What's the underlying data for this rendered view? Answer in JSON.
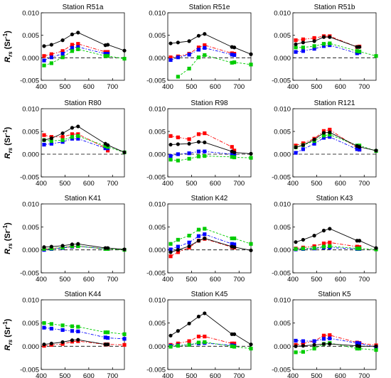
{
  "figure": {
    "ylabel_main": "R",
    "ylabel_sub": "rs",
    "ylabel_unit": " (Sr",
    "ylabel_exp": "-1",
    "ylabel_close": ")",
    "ytick_labels": [
      "-0.005",
      "0.000",
      "0.005",
      "0.010"
    ],
    "xtick_labels": [
      "400",
      "500",
      "600",
      "700"
    ]
  },
  "chart_data": [
    {
      "type": "line",
      "title": "Station R51a",
      "x": [
        412,
        443,
        490,
        530,
        555,
        670,
        680,
        750
      ],
      "xlim": [
        400,
        750
      ],
      "ylim": [
        -0.005,
        0.01
      ],
      "yticks": [
        -0.005,
        0.0,
        0.005,
        0.01
      ],
      "xticks": [
        400,
        500,
        600,
        700
      ],
      "grid": false,
      "reference_line": 0,
      "series": [
        {
          "color": "#000000",
          "marker": "circle",
          "values": [
            0.0026,
            0.0029,
            0.0039,
            0.0052,
            0.0056,
            0.0028,
            0.0029,
            0.0016
          ]
        },
        {
          "color": "#ff0000",
          "marker": "square",
          "values": [
            0.0004,
            0.0008,
            0.0015,
            0.0029,
            0.0031,
            0.0013,
            0.0013,
            null
          ]
        },
        {
          "color": "#0000ff",
          "marker": "square",
          "values": [
            -0.0006,
            0.0001,
            0.0009,
            0.0022,
            0.0024,
            0.0009,
            0.0009,
            null
          ]
        },
        {
          "color": "#00cc00",
          "marker": "square",
          "values": [
            -0.0017,
            -0.0012,
            0.0001,
            0.0015,
            0.0019,
            0.0004,
            0.0004,
            -0.0002
          ]
        }
      ]
    },
    {
      "type": "line",
      "title": "Station R51e",
      "x": [
        412,
        443,
        490,
        530,
        555,
        670,
        680,
        750
      ],
      "xlim": [
        400,
        750
      ],
      "ylim": [
        -0.005,
        0.01
      ],
      "yticks": [
        -0.005,
        0.0,
        0.005,
        0.01
      ],
      "xticks": [
        400,
        500,
        600,
        700
      ],
      "grid": false,
      "reference_line": 0,
      "series": [
        {
          "color": "#000000",
          "marker": "circle",
          "values": [
            0.0032,
            0.0034,
            0.0037,
            0.0049,
            0.0053,
            0.0024,
            0.0023,
            0.0008
          ]
        },
        {
          "color": "#ff0000",
          "marker": "square",
          "values": [
            0.0001,
            0.0003,
            0.0009,
            0.0023,
            0.0028,
            0.001,
            0.0009,
            null
          ]
        },
        {
          "color": "#0000ff",
          "marker": "square",
          "values": [
            -0.0005,
            0.0001,
            0.0007,
            0.0018,
            0.0022,
            0.0007,
            0.0006,
            null
          ]
        },
        {
          "color": "#00cc00",
          "marker": "square",
          "values": [
            null,
            -0.0042,
            -0.0024,
            0.0001,
            0.0006,
            -0.0011,
            -0.001,
            -0.0015
          ]
        }
      ]
    },
    {
      "type": "line",
      "title": "Station R51b",
      "x": [
        412,
        443,
        490,
        530,
        555,
        670,
        680,
        750
      ],
      "xlim": [
        400,
        750
      ],
      "ylim": [
        -0.005,
        0.01
      ],
      "yticks": [
        -0.005,
        0.0,
        0.005,
        0.01
      ],
      "xticks": [
        400,
        500,
        600,
        700
      ],
      "grid": false,
      "reference_line": 0,
      "series": [
        {
          "color": "#000000",
          "marker": "circle",
          "values": [
            0.003,
            0.0034,
            0.0037,
            0.0046,
            0.0046,
            0.0024,
            0.0024,
            null
          ]
        },
        {
          "color": "#ff0000",
          "marker": "square",
          "values": [
            0.0039,
            0.0041,
            0.0044,
            0.0048,
            0.0048,
            0.0024,
            0.0025,
            null
          ]
        },
        {
          "color": "#0000ff",
          "marker": "square",
          "values": [
            0.0013,
            0.0015,
            0.002,
            0.0026,
            0.0028,
            0.001,
            0.0012,
            null
          ]
        },
        {
          "color": "#00cc00",
          "marker": "square",
          "values": [
            0.0023,
            0.0023,
            0.0026,
            0.0031,
            0.0032,
            0.0015,
            0.0014,
            0.0004
          ]
        }
      ]
    },
    {
      "type": "line",
      "title": "Station R80",
      "x": [
        412,
        443,
        490,
        530,
        555,
        670,
        680,
        750
      ],
      "xlim": [
        400,
        750
      ],
      "ylim": [
        -0.005,
        0.01
      ],
      "yticks": [
        -0.005,
        0.0,
        0.005,
        0.01
      ],
      "xticks": [
        400,
        500,
        600,
        700
      ],
      "grid": false,
      "reference_line": 0,
      "series": [
        {
          "color": "#000000",
          "marker": "circle",
          "values": [
            0.0031,
            0.0035,
            0.0046,
            0.0058,
            0.0061,
            0.0023,
            0.002,
            0.0004
          ]
        },
        {
          "color": "#ff0000",
          "marker": "square",
          "values": [
            0.0042,
            0.0038,
            0.0038,
            0.0044,
            0.0044,
            0.0014,
            0.0008,
            null
          ]
        },
        {
          "color": "#0000ff",
          "marker": "square",
          "values": [
            0.0021,
            0.0023,
            0.0027,
            0.0034,
            0.0034,
            0.0013,
            0.0013,
            null
          ]
        },
        {
          "color": "#00cc00",
          "marker": "square",
          "values": [
            0.0031,
            0.0029,
            0.0031,
            0.0038,
            0.004,
            0.0018,
            0.0016,
            0.0004
          ]
        }
      ]
    },
    {
      "type": "line",
      "title": "Station R98",
      "x": [
        412,
        443,
        490,
        530,
        555,
        670,
        680,
        750
      ],
      "xlim": [
        400,
        750
      ],
      "ylim": [
        -0.005,
        0.01
      ],
      "yticks": [
        -0.005,
        0.0,
        0.005,
        0.01
      ],
      "xticks": [
        400,
        500,
        600,
        700
      ],
      "grid": false,
      "reference_line": 0,
      "series": [
        {
          "color": "#000000",
          "marker": "circle",
          "values": [
            0.0021,
            0.0022,
            0.0023,
            0.0027,
            0.0026,
            0.0006,
            0.0004,
            0.0001
          ]
        },
        {
          "color": "#ff0000",
          "marker": "square",
          "values": [
            0.004,
            0.0037,
            0.0033,
            0.0044,
            0.0046,
            0.0016,
            0.0008,
            null
          ]
        },
        {
          "color": "#0000ff",
          "marker": "square",
          "values": [
            -0.0004,
            0.0,
            0.0002,
            0.0006,
            0.0006,
            0.0,
            -0.0001,
            null
          ]
        },
        {
          "color": "#00cc00",
          "marker": "square",
          "values": [
            -0.0012,
            -0.0014,
            -0.001,
            -0.0005,
            -0.0004,
            -0.0006,
            -0.0007,
            -0.0008
          ]
        }
      ]
    },
    {
      "type": "line",
      "title": "Station R121",
      "x": [
        412,
        443,
        490,
        530,
        555,
        670,
        680,
        750
      ],
      "xlim": [
        400,
        750
      ],
      "ylim": [
        -0.005,
        0.01
      ],
      "yticks": [
        -0.005,
        0.0,
        0.005,
        0.01
      ],
      "xticks": [
        400,
        500,
        600,
        700
      ],
      "grid": false,
      "reference_line": 0,
      "series": [
        {
          "color": "#000000",
          "marker": "circle",
          "values": [
            0.0015,
            0.002,
            0.0032,
            0.0047,
            0.0048,
            0.0018,
            0.0016,
            0.0008
          ]
        },
        {
          "color": "#ff0000",
          "marker": "square",
          "values": [
            0.0019,
            0.0024,
            0.0034,
            0.0051,
            0.0054,
            0.0014,
            0.001,
            null
          ]
        },
        {
          "color": "#0000ff",
          "marker": "square",
          "values": [
            0.0003,
            0.0011,
            0.0023,
            0.0036,
            0.0038,
            0.0011,
            0.001,
            null
          ]
        },
        {
          "color": "#00cc00",
          "marker": "square",
          "values": [
            0.0015,
            0.002,
            0.0029,
            0.0041,
            0.0043,
            0.0019,
            0.0019,
            0.0007
          ]
        }
      ]
    },
    {
      "type": "line",
      "title": "Station K41",
      "x": [
        412,
        443,
        490,
        530,
        555,
        670,
        680,
        750
      ],
      "xlim": [
        400,
        750
      ],
      "ylim": [
        -0.005,
        0.01
      ],
      "yticks": [
        -0.005,
        0.0,
        0.005,
        0.01
      ],
      "xticks": [
        400,
        500,
        600,
        700
      ],
      "grid": false,
      "reference_line": 0,
      "series": [
        {
          "color": "#000000",
          "marker": "circle",
          "values": [
            0.0006,
            0.0007,
            0.0009,
            0.0012,
            0.0013,
            0.0004,
            0.0004,
            0.0001
          ]
        },
        {
          "color": "#ff0000",
          "marker": "square",
          "values": [
            0.0002,
            0.0003,
            0.0005,
            0.0007,
            0.0008,
            0.0002,
            0.0002,
            null
          ]
        },
        {
          "color": "#0000ff",
          "marker": "square",
          "values": [
            0.0,
            0.0002,
            0.0004,
            0.0007,
            0.0008,
            0.0002,
            0.0002,
            null
          ]
        },
        {
          "color": "#00cc00",
          "marker": "square",
          "values": [
            0.0002,
            0.0003,
            0.0005,
            0.0008,
            0.0008,
            0.0002,
            0.0002,
            0.0
          ]
        }
      ]
    },
    {
      "type": "line",
      "title": "Station K42",
      "x": [
        412,
        443,
        490,
        530,
        555,
        670,
        680,
        750
      ],
      "xlim": [
        400,
        750
      ],
      "ylim": [
        -0.005,
        0.01
      ],
      "yticks": [
        -0.005,
        0.0,
        0.005,
        0.01
      ],
      "xticks": [
        400,
        500,
        600,
        700
      ],
      "grid": false,
      "reference_line": 0,
      "series": [
        {
          "color": "#000000",
          "marker": "circle",
          "values": [
            -0.0005,
            0.0,
            0.0008,
            0.002,
            0.0025,
            0.0007,
            0.0006,
            -0.0001
          ]
        },
        {
          "color": "#ff0000",
          "marker": "square",
          "values": [
            -0.0014,
            -0.0005,
            0.0005,
            0.002,
            0.0024,
            0.0006,
            0.0005,
            null
          ]
        },
        {
          "color": "#0000ff",
          "marker": "square",
          "values": [
            0.0001,
            0.0007,
            0.0016,
            0.003,
            0.0034,
            0.0013,
            0.0012,
            null
          ]
        },
        {
          "color": "#00cc00",
          "marker": "square",
          "values": [
            0.0013,
            0.0022,
            0.0031,
            0.0044,
            0.0046,
            0.0025,
            0.0025,
            0.0013
          ]
        }
      ]
    },
    {
      "type": "line",
      "title": "Station K43",
      "x": [
        412,
        443,
        490,
        530,
        555,
        670,
        680,
        750
      ],
      "xlim": [
        400,
        750
      ],
      "ylim": [
        -0.005,
        0.01
      ],
      "yticks": [
        -0.005,
        0.0,
        0.005,
        0.01
      ],
      "xticks": [
        400,
        500,
        600,
        700
      ],
      "grid": false,
      "reference_line": 0,
      "series": [
        {
          "color": "#000000",
          "marker": "circle",
          "values": [
            0.0017,
            0.0022,
            0.0031,
            0.0042,
            0.0046,
            0.002,
            0.002,
            0.0004
          ]
        },
        {
          "color": "#ff0000",
          "marker": "square",
          "values": [
            0.0003,
            0.0005,
            0.0008,
            0.0014,
            0.0016,
            0.0007,
            0.0006,
            null
          ]
        },
        {
          "color": "#0000ff",
          "marker": "square",
          "values": [
            0.0001,
            0.0002,
            0.0003,
            0.0005,
            0.0005,
            0.0002,
            0.0002,
            null
          ]
        },
        {
          "color": "#00cc00",
          "marker": "square",
          "values": [
            0.0002,
            0.0003,
            0.0004,
            0.0007,
            0.0008,
            0.0003,
            0.0003,
            0.0001
          ]
        }
      ]
    },
    {
      "type": "line",
      "title": "Station K44",
      "x": [
        412,
        443,
        490,
        530,
        555,
        670,
        680,
        750
      ],
      "xlim": [
        400,
        750
      ],
      "ylim": [
        -0.005,
        0.01
      ],
      "yticks": [
        -0.005,
        0.0,
        0.005,
        0.01
      ],
      "xticks": [
        400,
        500,
        600,
        700
      ],
      "grid": false,
      "reference_line": 0,
      "series": [
        {
          "color": "#000000",
          "marker": "circle",
          "values": [
            0.0004,
            0.0006,
            0.0009,
            0.0013,
            0.0014,
            0.0004,
            0.0004,
            null
          ]
        },
        {
          "color": "#ff0000",
          "marker": "square",
          "values": [
            0.0001,
            0.0003,
            0.0005,
            0.001,
            0.0011,
            0.0004,
            0.0004,
            0.0003
          ]
        },
        {
          "color": "#0000ff",
          "marker": "square",
          "values": [
            0.004,
            0.0038,
            0.0035,
            0.0033,
            0.0032,
            0.0019,
            0.0018,
            0.0016
          ]
        },
        {
          "color": "#00cc00",
          "marker": "square",
          "values": [
            0.005,
            0.0048,
            0.0045,
            0.0043,
            0.0042,
            0.003,
            0.003,
            0.0026
          ]
        }
      ]
    },
    {
      "type": "line",
      "title": "Station K45",
      "x": [
        412,
        443,
        490,
        530,
        555,
        670,
        680,
        750
      ],
      "xlim": [
        400,
        750
      ],
      "ylim": [
        -0.005,
        0.01
      ],
      "yticks": [
        -0.005,
        0.0,
        0.005,
        0.01
      ],
      "xticks": [
        400,
        500,
        600,
        700
      ],
      "grid": false,
      "reference_line": 0,
      "series": [
        {
          "color": "#000000",
          "marker": "circle",
          "values": [
            0.0023,
            0.0033,
            0.0049,
            0.0064,
            0.0071,
            0.0026,
            0.0026,
            0.0004
          ]
        },
        {
          "color": "#ff0000",
          "marker": "square",
          "values": [
            0.0003,
            0.0006,
            0.0011,
            0.0021,
            0.0021,
            0.0006,
            0.0006,
            null
          ]
        },
        {
          "color": "#0000ff",
          "marker": "square",
          "values": [
            0.0001,
            0.0002,
            0.0003,
            0.0006,
            0.0007,
            0.0002,
            0.0001,
            null
          ]
        },
        {
          "color": "#00cc00",
          "marker": "square",
          "values": [
            -0.0001,
            0.0001,
            0.0003,
            0.0008,
            0.0009,
            0.0,
            -0.0001,
            -0.0005
          ]
        }
      ]
    },
    {
      "type": "line",
      "title": "Station K5",
      "x": [
        412,
        443,
        490,
        530,
        555,
        670,
        680,
        750
      ],
      "xlim": [
        400,
        750
      ],
      "ylim": [
        -0.005,
        0.01
      ],
      "yticks": [
        -0.005,
        0.0,
        0.005,
        0.01
      ],
      "xticks": [
        400,
        500,
        600,
        700
      ],
      "grid": false,
      "reference_line": 0,
      "series": [
        {
          "color": "#000000",
          "marker": "circle",
          "values": [
            0.0,
            0.0001,
            0.0003,
            0.0005,
            0.0005,
            0.0001,
            0.0,
            0.0
          ]
        },
        {
          "color": "#ff0000",
          "marker": "square",
          "values": [
            0.0003,
            0.0006,
            0.0011,
            0.0023,
            0.0024,
            0.0008,
            0.0007,
            0.0002
          ]
        },
        {
          "color": "#0000ff",
          "marker": "square",
          "values": [
            0.0012,
            0.0011,
            0.0011,
            0.0016,
            0.0017,
            0.0007,
            0.0006,
            -0.0002
          ]
        },
        {
          "color": "#00cc00",
          "marker": "square",
          "values": [
            -0.0013,
            -0.0012,
            -0.0005,
            0.0005,
            0.0007,
            -0.0005,
            -0.0005,
            -0.0008
          ]
        }
      ]
    }
  ]
}
